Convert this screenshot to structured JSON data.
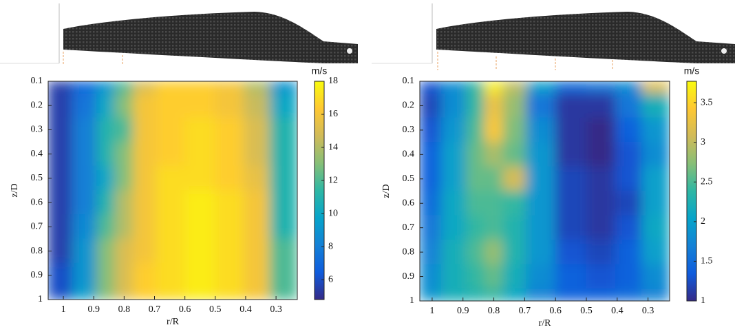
{
  "chart_data": [
    {
      "type": "heatmap",
      "xlabel": "r/R",
      "ylabel": "z/D",
      "colorbar_label": "m/s",
      "x": [
        1.02,
        0.92,
        0.86,
        0.8,
        0.74,
        0.65,
        0.55,
        0.45,
        0.36,
        0.28
      ],
      "y": [
        0.1,
        0.2,
        0.3,
        0.4,
        0.5,
        0.6,
        0.7,
        0.8,
        0.9,
        1
      ],
      "values": [
        [
          5.5,
          7,
          9,
          12,
          15,
          16.5,
          16.5,
          16,
          14,
          9
        ],
        [
          5.5,
          7.5,
          10,
          13,
          16,
          16.5,
          16.5,
          16,
          14.5,
          10
        ],
        [
          5.5,
          8,
          11,
          12,
          16,
          16.5,
          17,
          16.5,
          15,
          11
        ],
        [
          5.5,
          8,
          11,
          13,
          16,
          16.5,
          17,
          16.5,
          15,
          11
        ],
        [
          5.5,
          8,
          10,
          13,
          16,
          17,
          17,
          16.5,
          15.5,
          11
        ],
        [
          5.5,
          8,
          11,
          14,
          16,
          17,
          17.5,
          17,
          16,
          11
        ],
        [
          5.5,
          8.5,
          12,
          14,
          16,
          17,
          17.5,
          17,
          16,
          11
        ],
        [
          5.5,
          9,
          13,
          15,
          16,
          17,
          17.5,
          17,
          16,
          12
        ],
        [
          6,
          9,
          13,
          15,
          16.5,
          17,
          17.5,
          17,
          16,
          12
        ],
        [
          6,
          9.5,
          13,
          15,
          16.5,
          17,
          17.5,
          17,
          16,
          12
        ]
      ],
      "xlim": [
        1.05,
        0.23
      ],
      "ylim": [
        0.1,
        1
      ],
      "xticks": [
        1,
        0.9,
        0.8,
        0.7,
        0.6,
        0.5,
        0.4,
        0.3
      ],
      "yticks": [
        0.1,
        0.2,
        0.3,
        0.4,
        0.5,
        0.6,
        0.7,
        0.8,
        0.9,
        1
      ],
      "clim": [
        4.8,
        18
      ],
      "cticks": [
        6,
        8,
        10,
        12,
        14,
        16,
        18
      ]
    },
    {
      "type": "heatmap",
      "xlabel": "r/R",
      "ylabel": "z/D",
      "colorbar_label": "m/s",
      "x": [
        1.02,
        0.92,
        0.86,
        0.8,
        0.74,
        0.65,
        0.55,
        0.45,
        0.36,
        0.28
      ],
      "y": [
        0.1,
        0.2,
        0.3,
        0.4,
        0.5,
        0.6,
        0.7,
        0.8,
        0.9,
        1
      ],
      "values": [
        [
          1.3,
          1.8,
          2.4,
          3.7,
          3.0,
          2.0,
          1.5,
          1.6,
          1.8,
          3.2
        ],
        [
          1.2,
          1.8,
          2.4,
          3.3,
          2.8,
          1.6,
          1.1,
          1.1,
          1.6,
          2.2
        ],
        [
          1.3,
          1.9,
          2.5,
          3.4,
          2.7,
          1.8,
          1.1,
          1.0,
          1.4,
          1.9
        ],
        [
          1.4,
          2.0,
          2.6,
          2.9,
          2.6,
          1.9,
          1.1,
          1.0,
          1.3,
          1.8
        ],
        [
          1.4,
          2.0,
          2.6,
          2.6,
          3.1,
          1.9,
          1.2,
          1.1,
          1.3,
          2.0
        ],
        [
          1.5,
          2.1,
          2.5,
          2.5,
          2.4,
          1.9,
          1.2,
          1.1,
          1.2,
          2.0
        ],
        [
          1.6,
          2.1,
          2.4,
          2.5,
          2.3,
          1.9,
          1.2,
          1.1,
          1.3,
          2.1
        ],
        [
          1.7,
          2.2,
          2.5,
          2.8,
          2.3,
          1.9,
          1.3,
          1.2,
          1.4,
          2.0
        ],
        [
          1.8,
          2.2,
          2.4,
          2.6,
          2.2,
          1.8,
          1.4,
          1.3,
          1.4,
          1.8
        ],
        [
          1.9,
          2.2,
          2.3,
          2.4,
          2.1,
          1.7,
          1.4,
          1.4,
          1.5,
          1.7
        ]
      ],
      "xlim": [
        1.04,
        0.23
      ],
      "ylim": [
        0.1,
        1
      ],
      "xticks": [
        1,
        0.9,
        0.8,
        0.7,
        0.6,
        0.5,
        0.4,
        0.3
      ],
      "yticks": [
        0.1,
        0.2,
        0.3,
        0.4,
        0.5,
        0.6,
        0.7,
        0.8,
        0.9,
        1
      ],
      "clim": [
        1,
        3.77
      ],
      "cticks": [
        1,
        1.5,
        2,
        2.5,
        3,
        3.5
      ]
    }
  ]
}
